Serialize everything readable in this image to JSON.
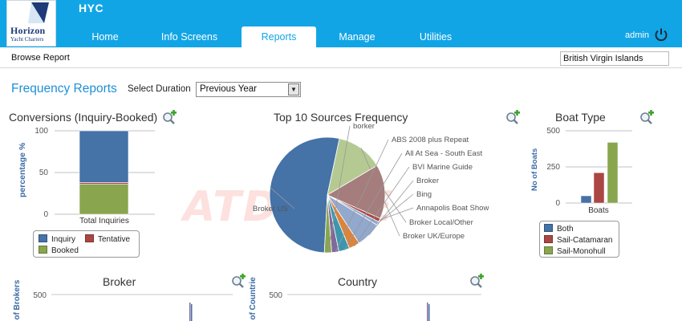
{
  "header": {
    "logo_line1": "Horizon",
    "logo_line2": "Yacht Charters",
    "app_title": "HYC",
    "tabs": [
      {
        "label": "Home"
      },
      {
        "label": "Info Screens"
      },
      {
        "label": "Reports"
      },
      {
        "label": "Manage"
      },
      {
        "label": "Utilities"
      }
    ],
    "active_tab": "Reports",
    "user": "admin"
  },
  "subbar": {
    "browse_label": "Browse Report",
    "region_value": "British Virgin Islands"
  },
  "frequency": {
    "title": "Frequency Reports",
    "duration_label": "Select Duration",
    "duration_value": "Previous Year"
  },
  "watermark": "ATDRIVE",
  "colors": {
    "header": "#12a5e6",
    "blue": "#4572a7",
    "red": "#aa4643",
    "green": "#89a54e",
    "purple": "#80699b",
    "teal": "#3d96ae",
    "orange": "#db843d",
    "lightblue": "#92a8cd",
    "rose": "#a47d7c",
    "lightgreen": "#b5ca92"
  },
  "chart_data": [
    {
      "type": "bar",
      "title": "Conversions (Inquiry-Booked)",
      "ylabel": "percentage %",
      "ylim": [
        0,
        100
      ],
      "yticks": [
        "0",
        "50",
        "100"
      ],
      "categories": [
        "Total Inquiries"
      ],
      "stacked": true,
      "series": [
        {
          "name": "Inquiry",
          "values": [
            62
          ]
        },
        {
          "name": "Tentative",
          "values": [
            2
          ]
        },
        {
          "name": "Booked",
          "values": [
            36
          ]
        }
      ],
      "legend": "bottom"
    },
    {
      "type": "pie",
      "title": "Top 10 Sources Frequency",
      "slices": [
        {
          "label": "Broker US",
          "value": 52
        },
        {
          "label": "Broker UK/Europe",
          "value": 13
        },
        {
          "label": "Broker Local/Other",
          "value": 15
        },
        {
          "label": "Annapolis Boat Show",
          "value": 1
        },
        {
          "label": "Bing",
          "value": 1
        },
        {
          "label": "Broker",
          "value": 7
        },
        {
          "label": "BVI Marine Guide",
          "value": 3
        },
        {
          "label": "All At Sea - South East",
          "value": 3
        },
        {
          "label": "ABS 2008 plus Repeat",
          "value": 2
        },
        {
          "label": "borker",
          "value": 2
        }
      ]
    },
    {
      "type": "bar",
      "title": "Boat Type",
      "ylabel": "No of Boats",
      "ylim": [
        0,
        500
      ],
      "yticks": [
        "0",
        "250",
        "500"
      ],
      "categories": [
        "Boats"
      ],
      "series": [
        {
          "name": "Both",
          "values": [
            50
          ]
        },
        {
          "name": "Sail-Catamaran",
          "values": [
            210
          ]
        },
        {
          "name": "Sail-Monohull",
          "values": [
            420
          ]
        }
      ],
      "legend": "bottom"
    },
    {
      "type": "bar",
      "title": "Broker",
      "ylabel": "# of Brokers",
      "yticks": [
        "500"
      ]
    },
    {
      "type": "bar",
      "title": "Country",
      "ylabel": "# of Countries",
      "yticks": [
        "500"
      ]
    }
  ]
}
